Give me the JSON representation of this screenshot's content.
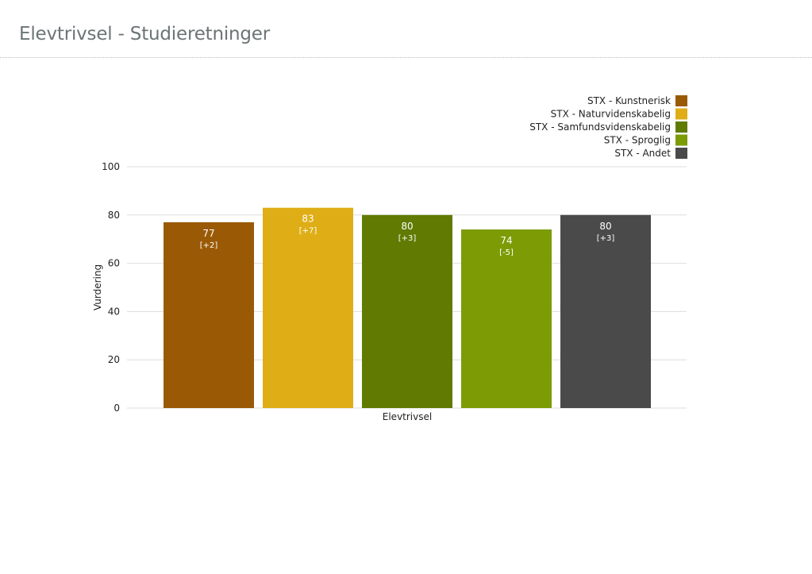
{
  "page": {
    "title": "Elevtrivsel - Studieretninger"
  },
  "chart_data": {
    "type": "bar",
    "title": "",
    "xlabel": "Elevtrivsel",
    "ylabel": "Vurdering",
    "ylim": [
      0,
      100
    ],
    "yticks": [
      0,
      20,
      40,
      60,
      80,
      100
    ],
    "grid": true,
    "legend_position": "top-right",
    "categories": [
      "Elevtrivsel"
    ],
    "series": [
      {
        "name": "STX - Kunstnerisk",
        "values": [
          77
        ],
        "change": "[+2]",
        "color": "#9a5a05"
      },
      {
        "name": "STX - Naturvidenskabelig",
        "values": [
          83
        ],
        "change": "[+7]",
        "color": "#dfae17"
      },
      {
        "name": "STX - Samfundsvidenskabelig",
        "values": [
          80
        ],
        "change": "[+3]",
        "color": "#607a02"
      },
      {
        "name": "STX - Sproglig",
        "values": [
          74
        ],
        "change": "[-5]",
        "color": "#7c9b05"
      },
      {
        "name": "STX - Andet",
        "values": [
          80
        ],
        "change": "[+3]",
        "color": "#4a4a4a"
      }
    ]
  }
}
